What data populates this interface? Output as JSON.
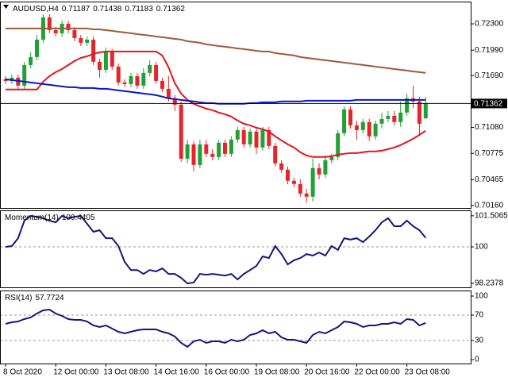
{
  "chart_data": [
    {
      "type": "candlestick",
      "title": "AUDUSD,H4",
      "categories": [
        "8 Oct 2020",
        null,
        null,
        null,
        null,
        null,
        null,
        null,
        "12 Oct 00:00",
        null,
        null,
        null,
        null,
        null,
        null,
        null,
        "13 Oct 08:00",
        null,
        null,
        null,
        null,
        null,
        null,
        null,
        "14 Oct 16:00",
        null,
        null,
        null,
        null,
        null,
        null,
        null,
        "16 Oct 00:00",
        null,
        null,
        null,
        null,
        null,
        null,
        null,
        "19 Oct 08:00",
        null,
        null,
        null,
        null,
        null,
        null,
        null,
        "20 Oct 16:00",
        null,
        null,
        null,
        null,
        null,
        null,
        null,
        "22 Oct 00:00",
        null,
        null,
        null,
        null,
        null,
        null,
        null,
        "23 Oct 08:00",
        null,
        null,
        null
      ],
      "open": [
        0.71647,
        0.71628,
        0.71666,
        0.71572,
        0.71815,
        0.71909,
        0.72114,
        0.72376,
        0.72226,
        0.72189,
        0.72301,
        0.72226,
        0.72133,
        0.72077,
        0.72114,
        0.71853,
        0.71759,
        0.71965,
        0.71796,
        0.7161,
        0.71591,
        0.71684,
        0.71572,
        0.71722,
        0.71815,
        0.71628,
        0.71535,
        0.71423,
        0.71348,
        0.70713,
        0.70881,
        0.70638,
        0.70881,
        0.70769,
        0.70732,
        0.709,
        0.70769,
        0.70937,
        0.71049,
        0.70881,
        0.71031,
        0.70844,
        0.71049,
        0.70862,
        0.70657,
        0.70582,
        0.70452,
        0.70414,
        0.70302,
        0.70265,
        0.70601,
        0.70526,
        0.70694,
        0.70732,
        0.71012,
        0.71292,
        0.71105,
        0.71049,
        0.71143,
        0.70975,
        0.71124,
        0.7118,
        0.71217,
        0.71143,
        0.71255,
        0.71423,
        0.71386,
        0.71187
      ],
      "high": [
        0.71684,
        0.71703,
        0.71703,
        0.71853,
        0.71965,
        0.7217,
        0.72413,
        0.72413,
        0.72263,
        0.72338,
        0.72338,
        0.72263,
        0.7217,
        0.72151,
        0.72151,
        0.7189,
        0.72021,
        0.72002,
        0.71834,
        0.71647,
        0.71722,
        0.71722,
        0.71778,
        0.71871,
        0.71853,
        0.71666,
        0.71684,
        0.7146,
        0.71386,
        0.70937,
        0.70919,
        0.70937,
        0.70937,
        0.70825,
        0.70937,
        0.70937,
        0.70975,
        0.71087,
        0.71087,
        0.71068,
        0.71068,
        0.71087,
        0.71087,
        0.709,
        0.70694,
        0.7062,
        0.70489,
        0.7047,
        0.70358,
        0.70713,
        0.70657,
        0.7075,
        0.70769,
        0.71049,
        0.71329,
        0.71329,
        0.71161,
        0.7118,
        0.7118,
        0.71161,
        0.71255,
        0.71273,
        0.71273,
        0.71386,
        0.71479,
        0.71572,
        0.71442,
        0.71438
      ],
      "low": [
        0.71591,
        0.71591,
        0.71535,
        0.71535,
        0.71778,
        0.71871,
        0.72077,
        0.72189,
        0.72151,
        0.72151,
        0.72189,
        0.72095,
        0.72039,
        0.72039,
        0.71815,
        0.71666,
        0.71722,
        0.71759,
        0.71572,
        0.71554,
        0.71554,
        0.71535,
        0.71535,
        0.71684,
        0.71591,
        0.71498,
        0.71386,
        0.71273,
        0.70676,
        0.70657,
        0.70564,
        0.70601,
        0.70732,
        0.70694,
        0.70694,
        0.70732,
        0.70732,
        0.709,
        0.70844,
        0.70844,
        0.70769,
        0.70806,
        0.70825,
        0.7062,
        0.70545,
        0.70414,
        0.70377,
        0.70265,
        0.7019,
        0.70209,
        0.7047,
        0.70489,
        0.70657,
        0.70694,
        0.70975,
        0.71068,
        0.70937,
        0.71012,
        0.70919,
        0.70937,
        0.71068,
        0.71143,
        0.71105,
        0.71087,
        0.71217,
        0.71311,
        0.70993,
        0.71183
      ],
      "close": [
        0.71628,
        0.71666,
        0.71572,
        0.71815,
        0.71909,
        0.72114,
        0.72376,
        0.72226,
        0.72189,
        0.72301,
        0.72226,
        0.72133,
        0.72077,
        0.72114,
        0.71853,
        0.71759,
        0.71965,
        0.71796,
        0.7161,
        0.71591,
        0.71684,
        0.71572,
        0.71722,
        0.71815,
        0.71628,
        0.71535,
        0.71423,
        0.71348,
        0.70713,
        0.70881,
        0.70638,
        0.70881,
        0.70769,
        0.70732,
        0.709,
        0.70769,
        0.70937,
        0.71049,
        0.70881,
        0.71031,
        0.70844,
        0.71049,
        0.70862,
        0.70657,
        0.70582,
        0.70452,
        0.70414,
        0.70302,
        0.70265,
        0.70601,
        0.70526,
        0.70694,
        0.70732,
        0.71012,
        0.71292,
        0.71105,
        0.71049,
        0.71143,
        0.70975,
        0.71124,
        0.7118,
        0.71217,
        0.71143,
        0.71255,
        0.71423,
        0.71386,
        0.71124,
        0.71362
      ],
      "up_color": "#22a034",
      "down_color": "#e5252b",
      "series": [
        {
          "color": "#e3161c",
          "values": [
            0.71526,
            0.71526,
            0.71526,
            0.71526,
            0.71526,
            0.71526,
            0.71619,
            0.71684,
            0.71731,
            0.71768,
            0.71815,
            0.71862,
            0.71899,
            0.71918,
            0.71946,
            0.71965,
            0.71974,
            0.71974,
            0.71974,
            0.71974,
            0.71974,
            0.71974,
            0.71974,
            0.71974,
            0.71974,
            0.71927,
            0.71787,
            0.716,
            0.71479,
            0.71404,
            0.71358,
            0.71329,
            0.71301,
            0.71283,
            0.71255,
            0.71236,
            0.71208,
            0.71161,
            0.71124,
            0.71105,
            0.71077,
            0.71059,
            0.71031,
            0.70975,
            0.70928,
            0.70881,
            0.70844,
            0.70788,
            0.7075,
            0.70732,
            0.70732,
            0.70732,
            0.70741,
            0.7076,
            0.70769,
            0.70778,
            0.70778,
            0.70788,
            0.70797,
            0.70797,
            0.70806,
            0.70825,
            0.70844,
            0.70872,
            0.70909,
            0.70947,
            0.70993,
            0.7104
          ]
        },
        {
          "color": "#0b16c4",
          "values": [
            0.71647,
            0.71638,
            0.71628,
            0.71619,
            0.7161,
            0.716,
            0.71591,
            0.71582,
            0.71572,
            0.71563,
            0.71554,
            0.71554,
            0.71544,
            0.71544,
            0.71544,
            0.71535,
            0.71535,
            0.71526,
            0.71516,
            0.71507,
            0.71498,
            0.71488,
            0.71479,
            0.7147,
            0.7146,
            0.71442,
            0.71423,
            0.71414,
            0.71404,
            0.71395,
            0.71386,
            0.71376,
            0.71367,
            0.71367,
            0.71358,
            0.71358,
            0.71358,
            0.71358,
            0.71358,
            0.71367,
            0.71367,
            0.71376,
            0.71376,
            0.71376,
            0.71386,
            0.71386,
            0.71386,
            0.71386,
            0.71395,
            0.71395,
            0.71395,
            0.71395,
            0.71395,
            0.71395,
            0.71395,
            0.71395,
            0.71404,
            0.71404,
            0.71404,
            0.71404,
            0.71404,
            0.71404,
            0.71404,
            0.71404,
            0.71404,
            0.71404,
            0.71404,
            0.71404
          ]
        },
        {
          "color": "#9c5b3d",
          "values": [
            0.72245,
            0.72245,
            0.72245,
            0.72245,
            0.72245,
            0.72245,
            0.72245,
            0.72245,
            0.72245,
            0.72245,
            0.72245,
            0.72245,
            0.72245,
            0.72245,
            0.72235,
            0.72235,
            0.72226,
            0.72217,
            0.72207,
            0.72198,
            0.72189,
            0.72179,
            0.7217,
            0.72161,
            0.72151,
            0.72142,
            0.72133,
            0.72123,
            0.72114,
            0.72095,
            0.72086,
            0.72077,
            0.72058,
            0.72049,
            0.72039,
            0.7203,
            0.72021,
            0.72011,
            0.72002,
            0.71993,
            0.71983,
            0.71974,
            0.71974,
            0.71955,
            0.71946,
            0.71937,
            0.71927,
            0.71909,
            0.71899,
            0.7189,
            0.71881,
            0.71871,
            0.71862,
            0.71853,
            0.71843,
            0.71834,
            0.71825,
            0.71815,
            0.71806,
            0.71796,
            0.71787,
            0.71778,
            0.71768,
            0.71759,
            0.7175,
            0.7174,
            0.71731,
            0.71722
          ]
        }
      ],
      "ylim": [
        0.70132,
        0.72562
      ],
      "yticks": [
        {
          "value": 0.723,
          "label": "0.72300"
        },
        {
          "value": 0.7199,
          "label": "0.71990"
        },
        {
          "value": 0.7169,
          "label": "0.71690"
        },
        {
          "value": 0.7108,
          "label": "0.71080"
        },
        0.70775,
        0.70465,
        {
          "value": 0.7016,
          "label": "0.70160"
        }
      ]
    },
    {
      "type": "line",
      "title": "Momentum(14)",
      "series": [
        {
          "color": "#15157e",
          "values": [
            100.0,
            100.04,
            100.42,
            101.27,
            101.5,
            101.46,
            101.39,
            101.27,
            101.19,
            101.5,
            101.39,
            101.46,
            101.5,
            101.12,
            100.73,
            100.81,
            100.42,
            100.42,
            100.04,
            99.27,
            98.88,
            98.88,
            98.69,
            98.88,
            98.81,
            98.96,
            98.69,
            98.69,
            98.5,
            98.23,
            98.27,
            98.69,
            98.65,
            98.69,
            98.65,
            98.61,
            98.69,
            98.42,
            98.69,
            98.88,
            99.08,
            99.54,
            99.46,
            100.04,
            99.65,
            99.15,
            99.35,
            99.46,
            99.65,
            99.58,
            99.73,
            99.58,
            100.04,
            99.85,
            100.42,
            100.35,
            100.42,
            100.23,
            100.5,
            100.81,
            101.19,
            101.39,
            101.0,
            101.0,
            101.27,
            101.0,
            100.81,
            100.4405
          ]
        }
      ],
      "ylim": [
        98.04,
        101.77
      ],
      "yticks": [
        101.5065,
        100,
        98.2378
      ],
      "levels": [
        100
      ]
    },
    {
      "type": "line",
      "title": "RSI(14)",
      "series": [
        {
          "color": "#15157e",
          "values": [
            56.3,
            58.8,
            60.0,
            63.8,
            66.3,
            72.5,
            77.5,
            78.8,
            72.5,
            68.8,
            63.8,
            62.5,
            62.5,
            60.0,
            53.8,
            51.3,
            53.8,
            48.8,
            43.8,
            41.3,
            43.8,
            46.3,
            47.5,
            47.5,
            47.5,
            43.8,
            41.3,
            36.3,
            26.3,
            20.0,
            28.8,
            31.3,
            26.3,
            28.8,
            28.8,
            26.3,
            31.3,
            28.8,
            31.3,
            38.8,
            41.3,
            46.3,
            41.3,
            43.8,
            35.0,
            31.3,
            31.3,
            28.8,
            26.3,
            38.8,
            43.8,
            41.3,
            46.3,
            51.3,
            60.0,
            58.8,
            56.3,
            51.3,
            53.8,
            53.8,
            56.3,
            56.3,
            58.8,
            56.3,
            63.8,
            62.5,
            53.8,
            57.7724
          ]
        }
      ],
      "ylim": [
        -6.25,
        108.75
      ],
      "yticks": [
        100,
        70,
        30,
        0
      ],
      "levels": [
        70,
        30
      ]
    }
  ]
}
